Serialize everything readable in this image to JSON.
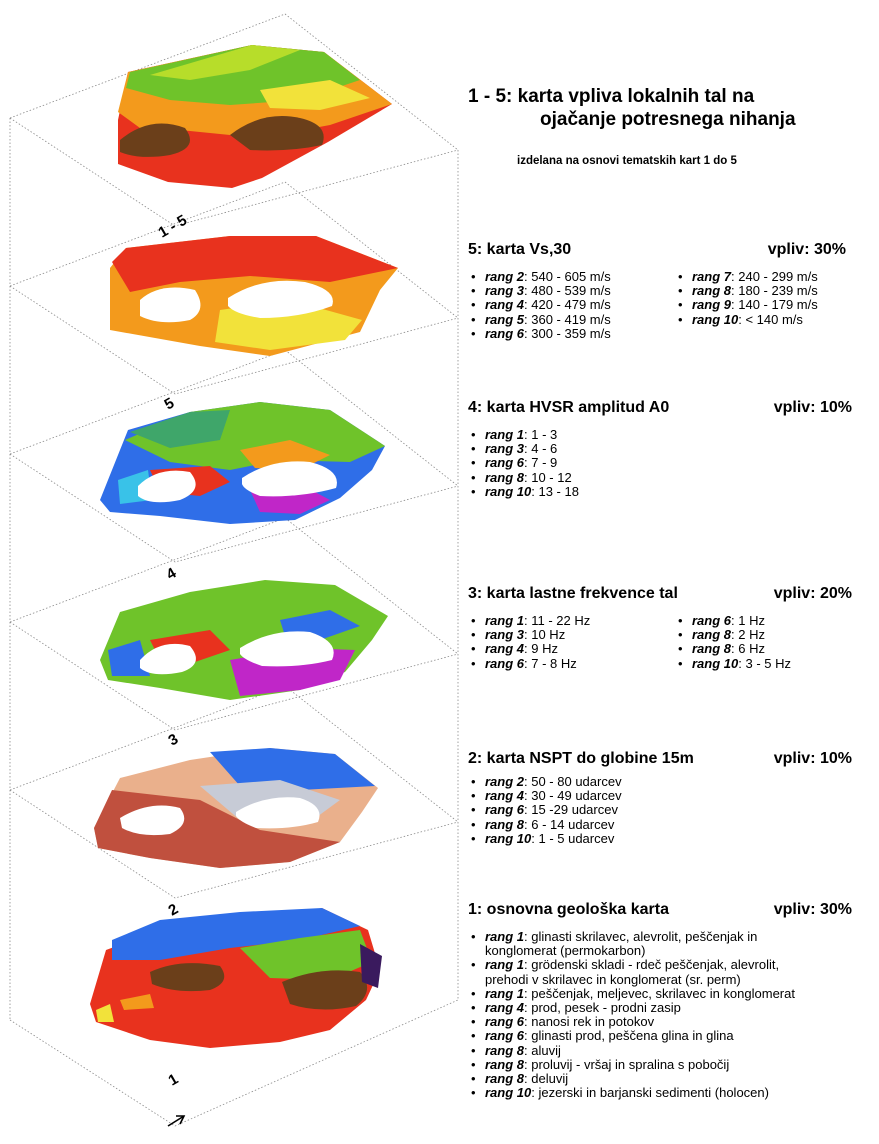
{
  "header": {
    "title_line1": "1 - 5: karta vpliva lokalnih tal na",
    "title_line2": "ojačanje potresnega nihanja",
    "subtitle": "izdelana na osnovi tematskih kart 1 do 5"
  },
  "layer_labels": [
    "1 - 5",
    "5",
    "4",
    "3",
    "2",
    "1"
  ],
  "sections": [
    {
      "id": "vs30",
      "title": "5: karta Vs,30",
      "weight": "vpliv: 30%",
      "col1": [
        {
          "rank": "rang 2",
          "text": ": 540 - 605 m/s"
        },
        {
          "rank": "rang 3",
          "text": ": 480 - 539 m/s"
        },
        {
          "rank": "rang 4",
          "text": ": 420 - 479 m/s"
        },
        {
          "rank": "rang 5",
          "text": ": 360 - 419 m/s"
        },
        {
          "rank": "rang 6",
          "text": ": 300 - 359 m/s"
        }
      ],
      "col2": [
        {
          "rank": "rang 7",
          "text": ": 240 - 299 m/s"
        },
        {
          "rank": "rang 8",
          "text": ": 180 - 239 m/s"
        },
        {
          "rank": "rang 9",
          "text": ": 140 - 179 m/s"
        },
        {
          "rank": "rang 10",
          "text": ": < 140 m/s"
        }
      ]
    },
    {
      "id": "hvsr",
      "title": "4: karta HVSR amplitud A0",
      "weight": "vpliv: 10%",
      "col1": [
        {
          "rank": "rang 1",
          "text": ": 1 - 3"
        },
        {
          "rank": "rang 3",
          "text": ": 4 - 6"
        },
        {
          "rank": "rang 6",
          "text": ": 7 - 9"
        },
        {
          "rank": "rang 8",
          "text": ": 10 - 12"
        },
        {
          "rank": "rang 10",
          "text": ": 13 - 18"
        }
      ],
      "col2": []
    },
    {
      "id": "freq",
      "title": "3: karta lastne frekvence tal",
      "weight": "vpliv: 20%",
      "col1": [
        {
          "rank": "rang 1",
          "text": ": 11 - 22 Hz"
        },
        {
          "rank": "rang 3",
          "text": ": 10 Hz"
        },
        {
          "rank": "rang 4",
          "text": ": 9 Hz"
        },
        {
          "rank": "rang 6",
          "text": ": 7 - 8 Hz"
        }
      ],
      "col2": [
        {
          "rank": "rang 6",
          "text": ": 1 Hz"
        },
        {
          "rank": "rang 8",
          "text": ": 2 Hz"
        },
        {
          "rank": "rang 8",
          "text": ": 6 Hz"
        },
        {
          "rank": "rang 10",
          "text": ": 3 - 5 Hz"
        }
      ]
    },
    {
      "id": "nspt",
      "title": "2: karta NSPT do globine 15m",
      "weight": "vpliv: 10%",
      "col1": [
        {
          "rank": "rang 2",
          "text": ": 50 - 80 udarcev"
        },
        {
          "rank": "rang 4",
          "text": ": 30 - 49 udarcev"
        },
        {
          "rank": "rang 6",
          "text": ": 15 -29 udarcev"
        },
        {
          "rank": "rang 8",
          "text": ": 6 - 14 udarcev"
        },
        {
          "rank": "rang 10",
          "text": ": 1 - 5 udarcev"
        }
      ],
      "col2": []
    },
    {
      "id": "geo",
      "title": "1: osnovna geološka karta",
      "weight": "vpliv: 30%",
      "col1": [
        {
          "rank": "rang 1",
          "text": ": glinasti skrilavec, alevrolit, peščenjak in",
          "cont": "konglomerat (permokarbon)"
        },
        {
          "rank": "rang 1",
          "text": ": grödenski skladi - rdeč peščenjak, alevrolit,",
          "cont": "prehodi v skrilavec in konglomerat (sr. perm)"
        },
        {
          "rank": "rang 1",
          "text": ": peščenjak, meljevec, skrilavec in konglomerat"
        },
        {
          "rank": "rang 4",
          "text": ": prod, pesek - prodni zasip"
        },
        {
          "rank": "rang 6",
          "text": ": nanosi rek in potokov"
        },
        {
          "rank": "rang 6",
          "text": ": glinasti prod, peščena glina in glina"
        },
        {
          "rank": "rang 8",
          "text": ": aluvij"
        },
        {
          "rank": "rang 8",
          "text": ": proluvij - vršaj in spralina s pobočij"
        },
        {
          "rank": "rang 8",
          "text": ": deluvij"
        },
        {
          "rank": "rang 10",
          "text": ": jezerski in barjanski sedimenti (holocen)"
        }
      ],
      "col2": []
    }
  ],
  "colors": {
    "frame": "#8a8a8a",
    "red": "#e8321e",
    "orange": "#f39a1c",
    "yellow": "#f2e23a",
    "green": "#6fc32a",
    "lime": "#b7dd2a",
    "brown": "#6b3f1a",
    "blue": "#2f6ee8",
    "magenta": "#c026c8",
    "cyan": "#39c2e8",
    "salmon": "#eab08c",
    "terracotta": "#c0503e",
    "grey": "#c7cbd6",
    "purple": "#3a1a5e",
    "navy": "#2a2a8a"
  }
}
